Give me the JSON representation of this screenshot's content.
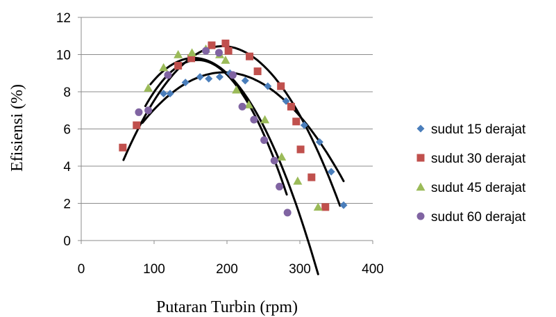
{
  "chart_data": {
    "type": "scatter",
    "title": "",
    "xlabel": "Putaran Turbin (rpm)",
    "ylabel": "Efisiensi (%)",
    "xlim": [
      0,
      400
    ],
    "ylim": [
      0,
      12
    ],
    "xticks": [
      "0",
      "100",
      "200",
      "300",
      "400"
    ],
    "yticks": [
      "0",
      "2",
      "4",
      "6",
      "8",
      "10",
      "12"
    ],
    "grid": "horizontal",
    "legend_position": "right",
    "trendline": "polynomial order 2 per series",
    "series": [
      {
        "name": "sudut 15 derajat",
        "marker": "diamond",
        "color": "#4a7ebb",
        "x": [
          113,
          122,
          143,
          163,
          175,
          190,
          204,
          225,
          256,
          281,
          306,
          327,
          343,
          360
        ],
        "y": [
          7.9,
          7.9,
          8.5,
          8.8,
          8.7,
          8.8,
          9.0,
          8.6,
          8.3,
          7.5,
          6.2,
          5.3,
          3.7,
          1.9
        ],
        "trend": {
          "a": -0.000217,
          "b": 0.085,
          "c": 0.72,
          "x_start": 84,
          "x_end": 360
        }
      },
      {
        "name": "sudut 30 derajat",
        "marker": "square",
        "color": "#c0504d",
        "x": [
          57,
          76,
          133,
          151,
          179,
          198,
          202,
          231,
          242,
          274,
          288,
          295,
          301,
          316,
          335
        ],
        "y": [
          5.0,
          6.2,
          9.4,
          9.8,
          10.5,
          10.6,
          10.2,
          9.9,
          9.1,
          8.3,
          7.2,
          6.4,
          4.9,
          3.4,
          1.8
        ],
        "trend": {
          "a": -0.000331,
          "b": 0.1284,
          "c": -2.0,
          "x_start": 58,
          "x_end": 355
        }
      },
      {
        "name": "sudut 45 derajat",
        "marker": "triangle",
        "color": "#9bbb59",
        "x": [
          92,
          113,
          133,
          152,
          171,
          190,
          198,
          213,
          230,
          252,
          275,
          297,
          325
        ],
        "y": [
          8.2,
          9.3,
          10.0,
          10.1,
          10.3,
          10.0,
          9.7,
          8.1,
          7.3,
          6.5,
          4.5,
          3.2,
          1.8
        ],
        "trend": {
          "a": -0.0004,
          "b": 0.1236,
          "c": 0.27,
          "x_start": 95,
          "x_end": 325
        }
      },
      {
        "name": "sudut 60 derajat",
        "marker": "circle",
        "color": "#8064a2",
        "x": [
          79,
          92,
          119,
          171,
          189,
          208,
          221,
          237,
          251,
          265,
          272,
          283
        ],
        "y": [
          6.9,
          7.0,
          8.9,
          10.2,
          10.1,
          8.9,
          7.2,
          6.5,
          5.4,
          4.3,
          2.9,
          1.5
        ],
        "trend": {
          "a": -0.000483,
          "b": 0.1542,
          "c": -2.6,
          "x_start": 88,
          "x_end": 282
        }
      }
    ]
  }
}
